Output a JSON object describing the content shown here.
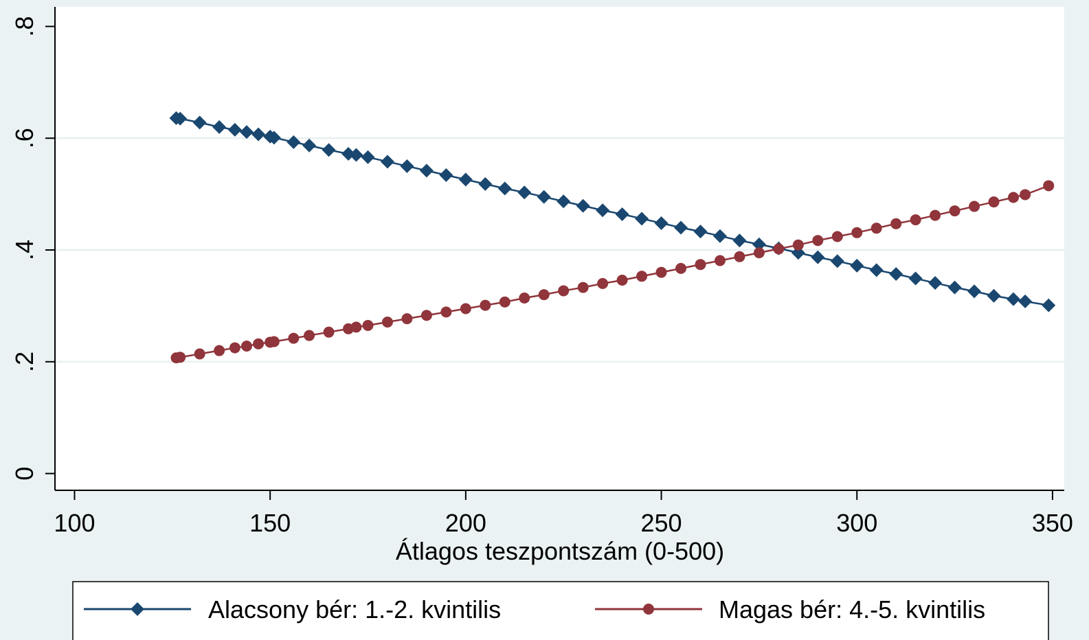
{
  "chart_data": {
    "type": "line",
    "title": "",
    "xlabel": "Átlagos teszpontszám (0-500)",
    "ylabel": "",
    "xlim": [
      95,
      353
    ],
    "ylim": [
      -0.03,
      0.835
    ],
    "x_ticks": [
      100,
      150,
      200,
      250,
      300,
      350
    ],
    "x_tick_labels": [
      "100",
      "150",
      "200",
      "250",
      "300",
      "350"
    ],
    "y_ticks": [
      0,
      0.2,
      0.4,
      0.6,
      0.8
    ],
    "y_tick_labels": [
      "0",
      ".2",
      ".4",
      ".6",
      ".8"
    ],
    "grid": true,
    "legend_position": "bottom",
    "x": [
      126,
      127,
      132,
      137,
      141,
      144,
      147,
      150,
      151,
      156,
      160,
      165,
      170,
      172,
      175,
      180,
      185,
      190,
      195,
      200,
      205,
      210,
      215,
      220,
      225,
      230,
      235,
      240,
      245,
      250,
      255,
      260,
      265,
      270,
      275,
      280,
      285,
      290,
      295,
      300,
      305,
      310,
      315,
      320,
      325,
      330,
      335,
      340,
      343,
      349
    ],
    "series": [
      {
        "name": "Alacsony bér: 1.-2. kvintilis",
        "color": "#1a476f",
        "marker": "diamond",
        "values": [
          0.636,
          0.635,
          0.628,
          0.62,
          0.615,
          0.611,
          0.607,
          0.603,
          0.601,
          0.593,
          0.587,
          0.579,
          0.572,
          0.57,
          0.566,
          0.558,
          0.55,
          0.542,
          0.534,
          0.526,
          0.518,
          0.51,
          0.503,
          0.495,
          0.487,
          0.479,
          0.471,
          0.464,
          0.456,
          0.448,
          0.44,
          0.433,
          0.425,
          0.417,
          0.41,
          0.403,
          0.395,
          0.387,
          0.38,
          0.372,
          0.364,
          0.357,
          0.349,
          0.341,
          0.333,
          0.326,
          0.318,
          0.312,
          0.308,
          0.301
        ]
      },
      {
        "name": "Magas bér: 4.-5. kvintilis",
        "color": "#90353b",
        "marker": "circle",
        "values": [
          0.207,
          0.208,
          0.214,
          0.22,
          0.225,
          0.228,
          0.232,
          0.235,
          0.236,
          0.242,
          0.247,
          0.253,
          0.259,
          0.262,
          0.265,
          0.271,
          0.277,
          0.283,
          0.289,
          0.295,
          0.301,
          0.307,
          0.314,
          0.32,
          0.327,
          0.333,
          0.34,
          0.346,
          0.353,
          0.36,
          0.367,
          0.374,
          0.381,
          0.388,
          0.395,
          0.402,
          0.409,
          0.417,
          0.424,
          0.431,
          0.439,
          0.447,
          0.454,
          0.462,
          0.47,
          0.478,
          0.486,
          0.494,
          0.499,
          0.515
        ]
      }
    ]
  }
}
